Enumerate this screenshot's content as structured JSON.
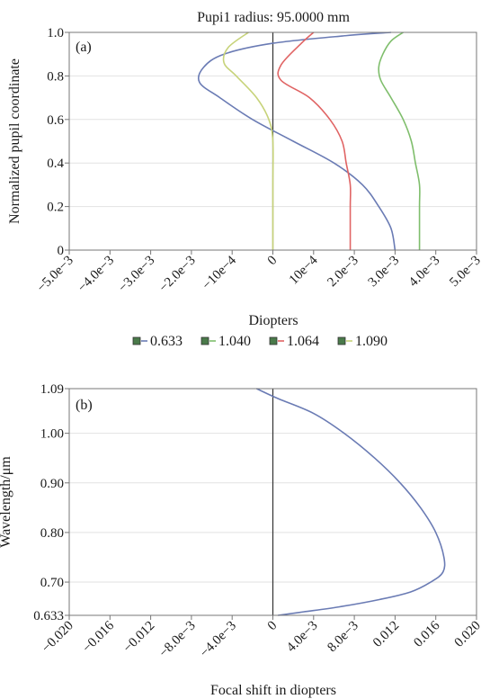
{
  "chart_data": [
    {
      "type": "line",
      "panel_label": "(a)",
      "title": "Pupi1 radius: 95.0000 mm",
      "xlabel": "Diopters",
      "ylabel": "Normalized pupil coordinate",
      "xlim": [
        -0.005,
        0.005
      ],
      "ylim": [
        0,
        1
      ],
      "x_tick_values": [
        -0.005,
        -0.004,
        -0.003,
        -0.002,
        -0.001,
        0,
        0.001,
        0.002,
        0.003,
        0.004,
        0.005
      ],
      "x_tick_labels": [
        "−5.0e−3",
        "−4.0e−3",
        "−3.0e−3",
        "−2.0e−3",
        "−10e−4",
        "0",
        "10e−4",
        "2.0e−3",
        "3.0e−3",
        "4.0e−3",
        "5.0e−3"
      ],
      "y_tick_values": [
        0,
        0.2,
        0.4,
        0.6,
        0.8,
        1.0
      ],
      "y_tick_labels": [
        "0",
        "0.2",
        "0.4",
        "0.6",
        "0.8",
        "1.0"
      ],
      "grid": "horizontal",
      "legend_position": "bottom",
      "series": [
        {
          "name": "0.633",
          "color": "#6a7bb4",
          "x": [
            0.003,
            0.0029,
            0.0026,
            0.0022,
            0.0015,
            0.0005,
            -0.0005,
            -0.0013,
            -0.0018,
            -0.0017,
            -0.0012,
            0.0,
            0.0018,
            0.0029
          ],
          "y": [
            0.0,
            0.1,
            0.2,
            0.3,
            0.4,
            0.5,
            0.6,
            0.7,
            0.77,
            0.84,
            0.9,
            0.95,
            0.985,
            1.0
          ]
        },
        {
          "name": "1.040",
          "color": "#7fbe6c",
          "x": [
            0.0036,
            0.0036,
            0.0036,
            0.0035,
            0.0034,
            0.0032,
            0.0029,
            0.00265,
            0.0026,
            0.0027,
            0.0029,
            0.0032
          ],
          "y": [
            0.0,
            0.2,
            0.3,
            0.4,
            0.5,
            0.6,
            0.7,
            0.78,
            0.84,
            0.9,
            0.96,
            1.0
          ]
        },
        {
          "name": "1.064",
          "color": "#e06464",
          "x": [
            0.0019,
            0.0019,
            0.0019,
            0.0018,
            0.0017,
            0.0014,
            0.0009,
            0.0002,
            0.0002,
            0.0007,
            0.001
          ],
          "y": [
            0.0,
            0.2,
            0.3,
            0.4,
            0.5,
            0.6,
            0.7,
            0.78,
            0.85,
            0.95,
            1.0
          ]
        },
        {
          "name": "1.090",
          "color": "#c7d37a",
          "x": [
            0.0,
            0.0,
            0.0,
            -0.0001,
            -0.0004,
            -0.0009,
            -0.0012,
            -0.0011,
            -0.0006
          ],
          "y": [
            0.0,
            0.3,
            0.5,
            0.6,
            0.7,
            0.8,
            0.86,
            0.93,
            1.0
          ]
        }
      ]
    },
    {
      "type": "line",
      "panel_label": "(b)",
      "title": "",
      "xlabel": "Focal shift in diopters",
      "ylabel": "Wavelength/μm",
      "xlim": [
        -0.02,
        0.02
      ],
      "ylim": [
        0.633,
        1.09
      ],
      "x_tick_values": [
        -0.02,
        -0.016,
        -0.012,
        -0.008,
        -0.004,
        0,
        0.004,
        0.008,
        0.012,
        0.016,
        0.02
      ],
      "x_tick_labels": [
        "−0.020",
        "−0.016",
        "−0.012",
        "−8.0e−3",
        "−4.0e−3",
        "0",
        "4.0e−3",
        "8.0e−3",
        "0.012",
        "0.016",
        "0.020"
      ],
      "y_tick_values": [
        0.633,
        0.7,
        0.8,
        0.9,
        1.0,
        1.09
      ],
      "y_tick_labels": [
        "0.633",
        "0.70",
        "0.80",
        "0.90",
        "1.00",
        "1.09"
      ],
      "grid": "horizontal",
      "series": [
        {
          "color": "#6a7bb4",
          "x": [
            0.0005,
            0.003,
            0.0065,
            0.0105,
            0.0135,
            0.0155,
            0.0167,
            0.0168,
            0.016,
            0.0145,
            0.0125,
            0.01,
            0.007,
            0.004,
            0.0005,
            -0.0016
          ],
          "y": [
            0.633,
            0.64,
            0.65,
            0.665,
            0.68,
            0.7,
            0.72,
            0.75,
            0.8,
            0.85,
            0.9,
            0.95,
            1.0,
            1.04,
            1.07,
            1.09
          ]
        }
      ]
    }
  ]
}
